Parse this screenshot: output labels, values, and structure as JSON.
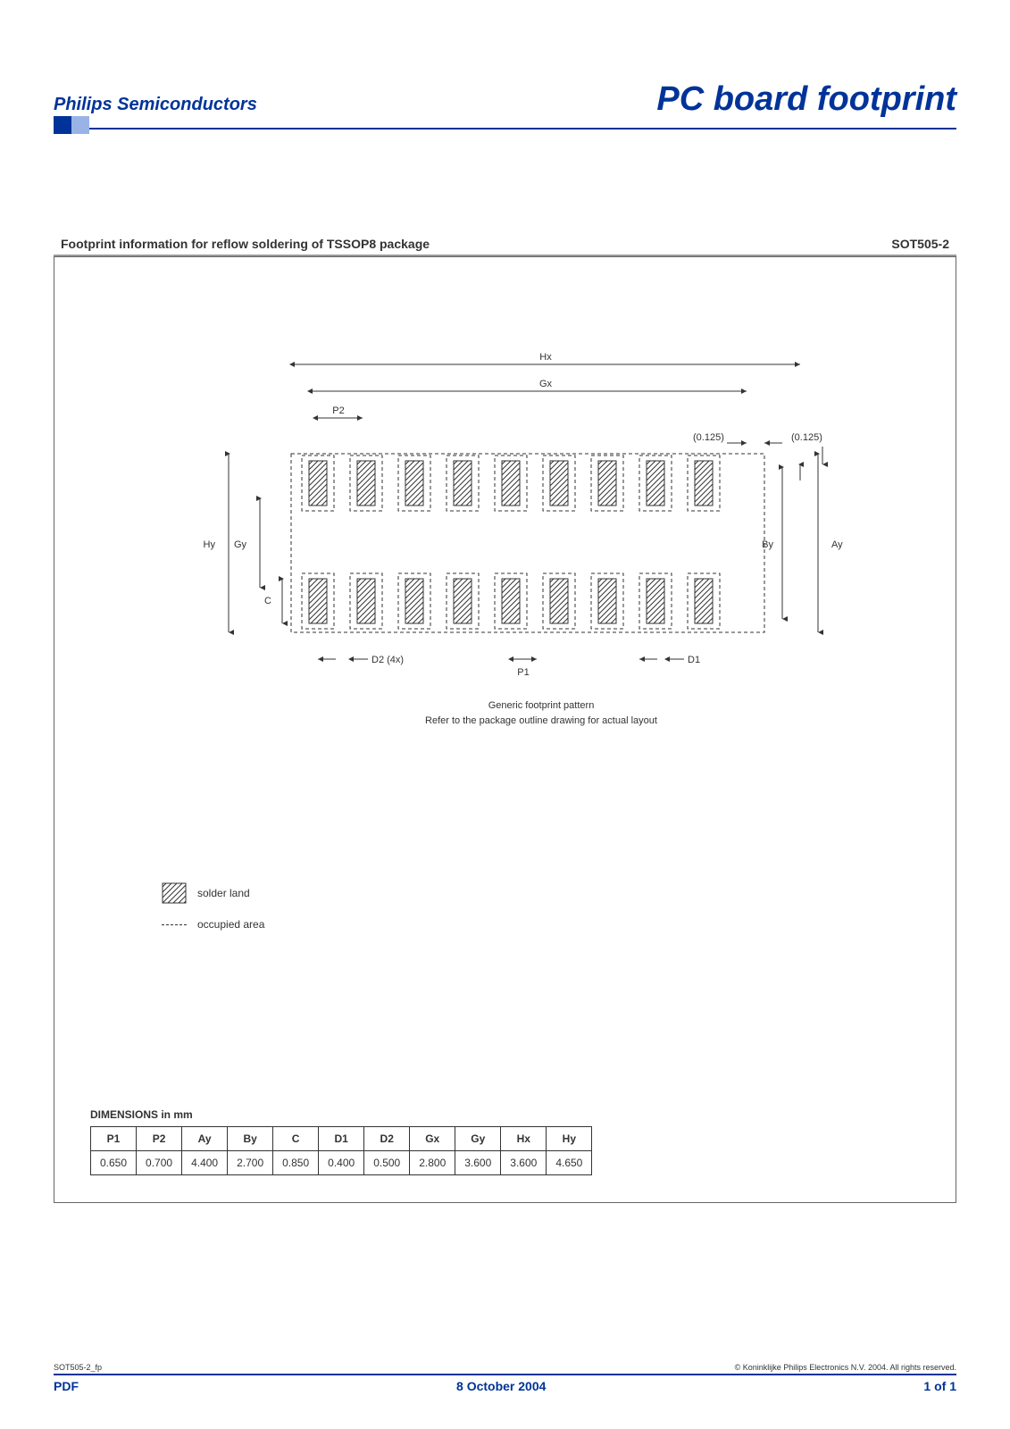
{
  "header": {
    "brand": "Philips Semiconductors",
    "title": "PC board footprint",
    "brand_color": "#003399",
    "brand_fontsize": 20,
    "title_fontsize": 38
  },
  "subtitle": {
    "text": "Footprint information for reflow soldering of TSSOP8 package",
    "package_code": "SOT505-2",
    "fontsize": 14
  },
  "diagram": {
    "type": "footprint-diagram",
    "caption_line1": "Generic footprint pattern",
    "caption_line2": "Refer to the package outline drawing for actual layout",
    "labels": {
      "Hx": "Hx",
      "Gx": "Gx",
      "P2": "P2",
      "P1": "P1",
      "D1": "D1",
      "D2": "D2 (4x)",
      "Hy": "Hy",
      "Gy": "Gy",
      "By": "By",
      "Ay": "Ay",
      "C": "C",
      "tol_left": "(0.125)",
      "tol_right": "(0.125)"
    },
    "style": {
      "pad_count_per_row": 9,
      "pad_rows": 2,
      "pad_fill": "hatch",
      "hatch_color": "#333333",
      "outline_dash": "4,3",
      "outline_color": "#333333",
      "dim_line_color": "#333333",
      "label_fontsize": 11,
      "background_color": "#ffffff"
    }
  },
  "legend": {
    "solder_land": "solder land",
    "occupied_area": "occupied area"
  },
  "dimensions": {
    "heading": "DIMENSIONS in mm",
    "columns": [
      "P1",
      "P2",
      "Ay",
      "By",
      "C",
      "D1",
      "D2",
      "Gx",
      "Gy",
      "Hx",
      "Hy"
    ],
    "values": [
      "0.650",
      "0.700",
      "4.400",
      "2.700",
      "0.850",
      "0.400",
      "0.500",
      "2.800",
      "3.600",
      "3.600",
      "4.650"
    ],
    "cell_border_color": "#333333",
    "fontsize": 12
  },
  "footer": {
    "doc_code": "SOT505-2_fp",
    "copyright": "© Koninklijke Philips Electronics N.V. 2004. All rights reserved.",
    "pdf_label": "PDF",
    "date": "8 October 2004",
    "page": "1 of 1",
    "color": "#003399"
  }
}
